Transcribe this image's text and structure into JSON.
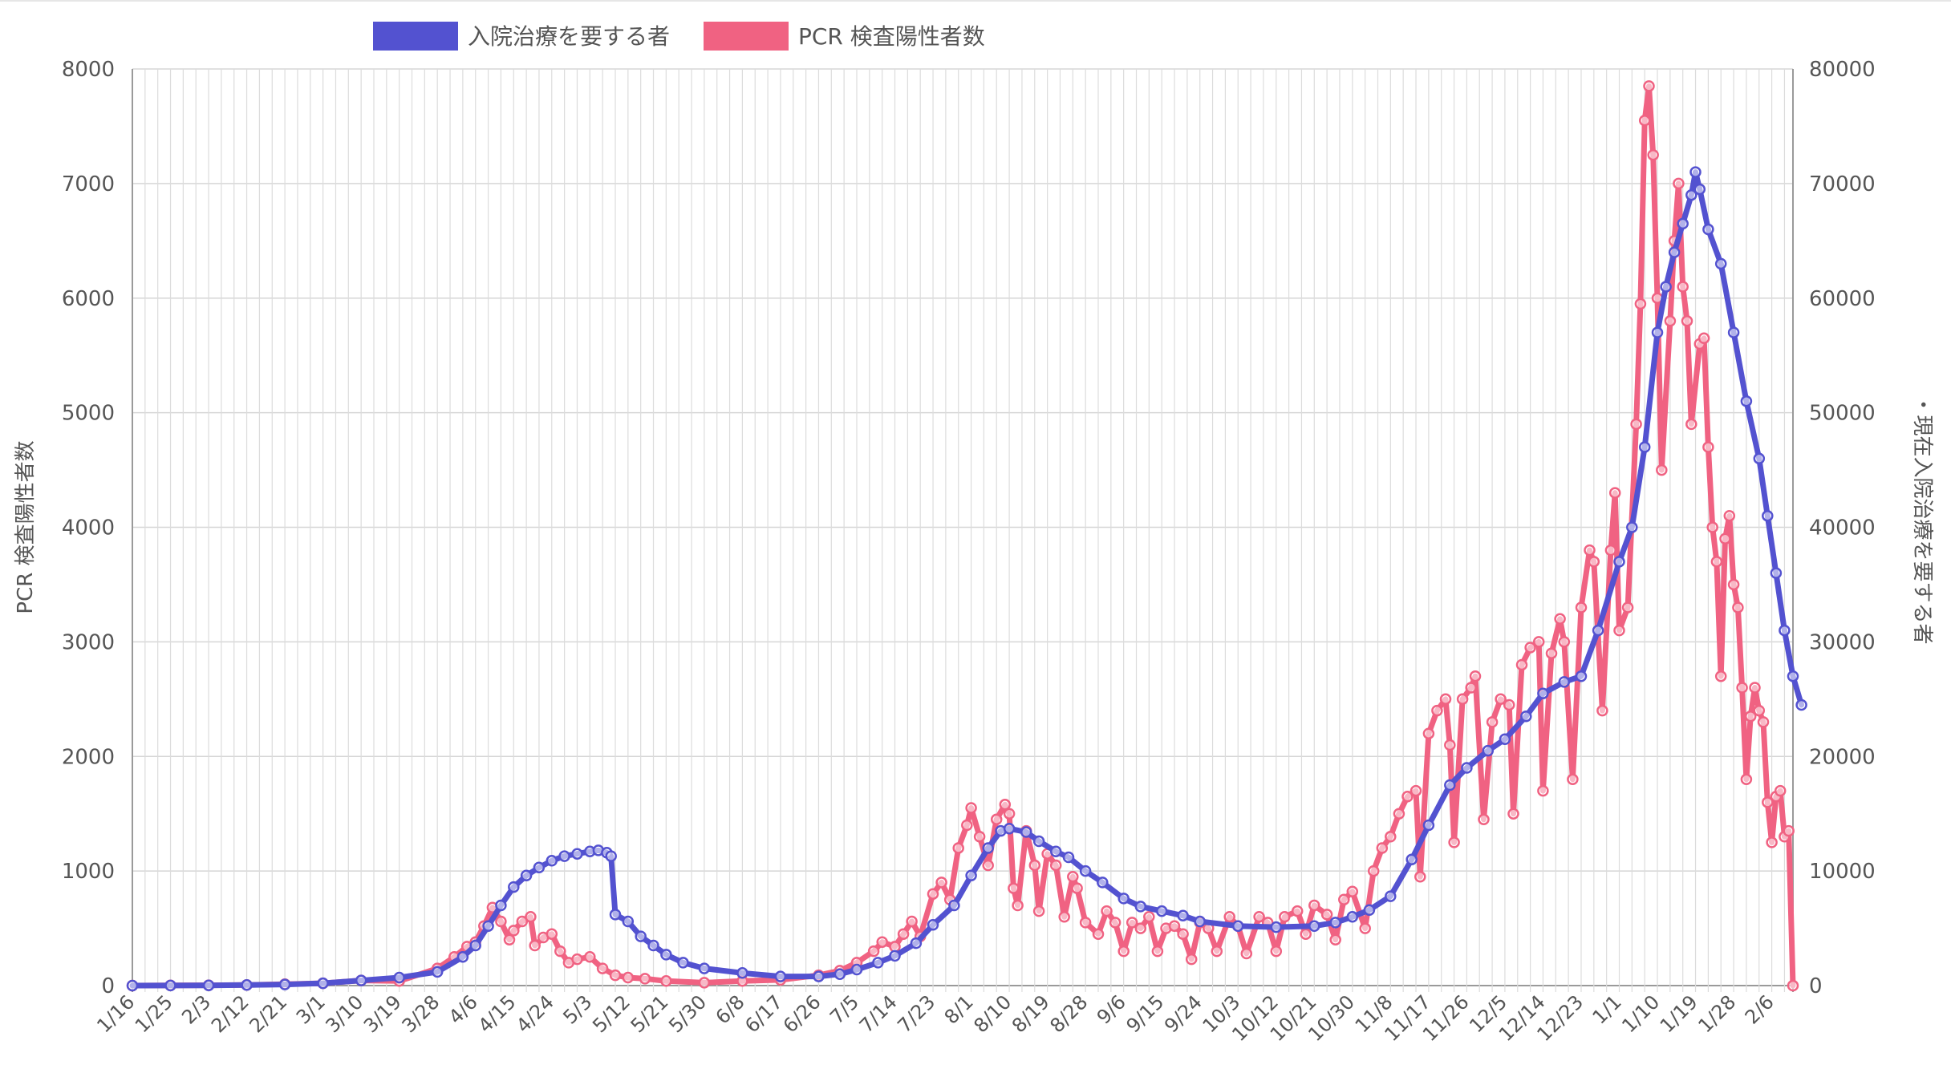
{
  "chart_data": {
    "type": "line",
    "title": "",
    "legend": {
      "placement": "top-center",
      "entries": [
        {
          "name": "入院治療を要する者",
          "color": "#5352d0"
        },
        {
          "name": "PCR 検査陽性者数",
          "color": "#f06282"
        }
      ]
    },
    "y_left": {
      "label": "PCR 検査陽性者数",
      "ylim": [
        0,
        8000
      ],
      "ticks": [
        "0",
        "1000",
        "2000",
        "3000",
        "4000",
        "5000",
        "6000",
        "7000",
        "8000"
      ]
    },
    "y_right": {
      "label": "・現在入院治療を要する者",
      "ylim": [
        0,
        80000
      ],
      "ticks": [
        "0",
        "10000",
        "20000",
        "30000",
        "40000",
        "50000",
        "60000",
        "70000",
        "80000"
      ]
    },
    "x_ticks": [
      "1/16",
      "1/25",
      "2/3",
      "2/12",
      "2/21",
      "3/1",
      "3/10",
      "3/19",
      "3/28",
      "4/6",
      "4/15",
      "4/24",
      "5/3",
      "5/12",
      "5/21",
      "5/30",
      "6/8",
      "6/17",
      "6/26",
      "7/5",
      "7/14",
      "7/23",
      "8/1",
      "8/10",
      "8/19",
      "8/28",
      "9/6",
      "9/15",
      "9/24",
      "10/3",
      "10/12",
      "10/21",
      "10/30",
      "11/8",
      "11/17",
      "11/26",
      "12/5",
      "12/14",
      "12/23",
      "1/1",
      "1/10",
      "1/19",
      "1/28",
      "2/6"
    ],
    "grid": true,
    "series": [
      {
        "name": "PCR 検査陽性者数",
        "axis": "left",
        "color": "#f06282",
        "points": [
          [
            "1/16",
            0
          ],
          [
            "1/25",
            2
          ],
          [
            "2/3",
            3
          ],
          [
            "2/12",
            5
          ],
          [
            "2/21",
            12
          ],
          [
            "3/1",
            20
          ],
          [
            "3/10",
            45
          ],
          [
            "3/19",
            40
          ],
          [
            "3/28",
            150
          ],
          [
            "4/1",
            250
          ],
          [
            "4/4",
            340
          ],
          [
            "4/6",
            380
          ],
          [
            "4/8",
            520
          ],
          [
            "4/10",
            680
          ],
          [
            "4/12",
            560
          ],
          [
            "4/14",
            400
          ],
          [
            "4/15",
            480
          ],
          [
            "4/17",
            560
          ],
          [
            "4/19",
            600
          ],
          [
            "4/20",
            350
          ],
          [
            "4/22",
            420
          ],
          [
            "4/24",
            450
          ],
          [
            "4/26",
            300
          ],
          [
            "4/28",
            200
          ],
          [
            "4/30",
            230
          ],
          [
            "5/3",
            250
          ],
          [
            "5/6",
            150
          ],
          [
            "5/9",
            90
          ],
          [
            "5/12",
            70
          ],
          [
            "5/16",
            60
          ],
          [
            "5/21",
            40
          ],
          [
            "5/30",
            25
          ],
          [
            "6/8",
            40
          ],
          [
            "6/17",
            50
          ],
          [
            "6/26",
            90
          ],
          [
            "7/1",
            130
          ],
          [
            "7/5",
            200
          ],
          [
            "7/9",
            300
          ],
          [
            "7/11",
            380
          ],
          [
            "7/14",
            340
          ],
          [
            "7/16",
            450
          ],
          [
            "7/18",
            560
          ],
          [
            "7/20",
            430
          ],
          [
            "7/23",
            800
          ],
          [
            "7/25",
            900
          ],
          [
            "7/27",
            750
          ],
          [
            "7/29",
            1200
          ],
          [
            "7/31",
            1400
          ],
          [
            "8/1",
            1550
          ],
          [
            "8/3",
            1300
          ],
          [
            "8/5",
            1050
          ],
          [
            "8/7",
            1450
          ],
          [
            "8/9",
            1580
          ],
          [
            "8/10",
            1500
          ],
          [
            "8/11",
            850
          ],
          [
            "8/12",
            700
          ],
          [
            "8/14",
            1350
          ],
          [
            "8/16",
            1050
          ],
          [
            "8/17",
            650
          ],
          [
            "8/19",
            1150
          ],
          [
            "8/21",
            1050
          ],
          [
            "8/23",
            600
          ],
          [
            "8/25",
            950
          ],
          [
            "8/26",
            850
          ],
          [
            "8/28",
            550
          ],
          [
            "8/31",
            450
          ],
          [
            "9/2",
            650
          ],
          [
            "9/4",
            550
          ],
          [
            "9/6",
            300
          ],
          [
            "9/8",
            550
          ],
          [
            "9/10",
            500
          ],
          [
            "9/12",
            600
          ],
          [
            "9/14",
            300
          ],
          [
            "9/16",
            500
          ],
          [
            "9/18",
            520
          ],
          [
            "9/20",
            450
          ],
          [
            "9/22",
            230
          ],
          [
            "9/24",
            550
          ],
          [
            "9/26",
            500
          ],
          [
            "9/28",
            300
          ],
          [
            "10/1",
            600
          ],
          [
            "10/3",
            520
          ],
          [
            "10/5",
            280
          ],
          [
            "10/8",
            600
          ],
          [
            "10/10",
            550
          ],
          [
            "10/12",
            300
          ],
          [
            "10/14",
            600
          ],
          [
            "10/17",
            650
          ],
          [
            "10/19",
            450
          ],
          [
            "10/21",
            700
          ],
          [
            "10/24",
            620
          ],
          [
            "10/26",
            400
          ],
          [
            "10/28",
            750
          ],
          [
            "10/30",
            820
          ],
          [
            "11/2",
            500
          ],
          [
            "11/4",
            1000
          ],
          [
            "11/6",
            1200
          ],
          [
            "11/8",
            1300
          ],
          [
            "11/10",
            1500
          ],
          [
            "11/12",
            1650
          ],
          [
            "11/14",
            1700
          ],
          [
            "11/15",
            950
          ],
          [
            "11/17",
            2200
          ],
          [
            "11/19",
            2400
          ],
          [
            "11/21",
            2500
          ],
          [
            "11/22",
            2100
          ],
          [
            "11/23",
            1250
          ],
          [
            "11/25",
            2500
          ],
          [
            "11/27",
            2600
          ],
          [
            "11/28",
            2700
          ],
          [
            "11/30",
            1450
          ],
          [
            "12/2",
            2300
          ],
          [
            "12/4",
            2500
          ],
          [
            "12/6",
            2450
          ],
          [
            "12/7",
            1500
          ],
          [
            "12/9",
            2800
          ],
          [
            "12/11",
            2950
          ],
          [
            "12/13",
            3000
          ],
          [
            "12/14",
            1700
          ],
          [
            "12/16",
            2900
          ],
          [
            "12/18",
            3200
          ],
          [
            "12/19",
            3000
          ],
          [
            "12/21",
            1800
          ],
          [
            "12/23",
            3300
          ],
          [
            "12/25",
            3800
          ],
          [
            "12/26",
            3700
          ],
          [
            "12/28",
            2400
          ],
          [
            "12/30",
            3800
          ],
          [
            "12/31",
            4300
          ],
          [
            "1/1",
            3100
          ],
          [
            "1/3",
            3300
          ],
          [
            "1/5",
            4900
          ],
          [
            "1/6",
            5950
          ],
          [
            "1/7",
            7550
          ],
          [
            "1/8",
            7850
          ],
          [
            "1/9",
            7250
          ],
          [
            "1/10",
            6000
          ],
          [
            "1/11",
            4500
          ],
          [
            "1/13",
            5800
          ],
          [
            "1/14",
            6500
          ],
          [
            "1/15",
            7000
          ],
          [
            "1/16",
            6100
          ],
          [
            "1/17",
            5800
          ],
          [
            "1/18",
            4900
          ],
          [
            "1/20",
            5600
          ],
          [
            "1/21",
            5650
          ],
          [
            "1/22",
            4700
          ],
          [
            "1/23",
            4000
          ],
          [
            "1/24",
            3700
          ],
          [
            "1/25",
            2700
          ],
          [
            "1/26",
            3900
          ],
          [
            "1/27",
            4100
          ],
          [
            "1/28",
            3500
          ],
          [
            "1/29",
            3300
          ],
          [
            "1/30",
            2600
          ],
          [
            "1/31",
            1800
          ],
          [
            "2/1",
            2350
          ],
          [
            "2/2",
            2600
          ],
          [
            "2/3",
            2400
          ],
          [
            "2/4",
            2300
          ],
          [
            "2/5",
            1600
          ],
          [
            "2/6",
            1250
          ],
          [
            "2/7",
            1650
          ],
          [
            "2/8",
            1700
          ],
          [
            "2/9",
            1300
          ],
          [
            "2/10",
            1350
          ],
          [
            "2/11",
            0
          ]
        ]
      },
      {
        "name": "入院治療を要する者",
        "axis": "right",
        "color": "#5352d0",
        "points": [
          [
            "1/16",
            0
          ],
          [
            "1/25",
            5
          ],
          [
            "2/3",
            20
          ],
          [
            "2/12",
            50
          ],
          [
            "2/21",
            100
          ],
          [
            "3/1",
            200
          ],
          [
            "3/10",
            450
          ],
          [
            "3/19",
            700
          ],
          [
            "3/28",
            1200
          ],
          [
            "4/3",
            2500
          ],
          [
            "4/6",
            3500
          ],
          [
            "4/9",
            5200
          ],
          [
            "4/12",
            7000
          ],
          [
            "4/15",
            8600
          ],
          [
            "4/18",
            9600
          ],
          [
            "4/21",
            10300
          ],
          [
            "4/24",
            10900
          ],
          [
            "4/27",
            11300
          ],
          [
            "4/30",
            11500
          ],
          [
            "5/3",
            11700
          ],
          [
            "5/5",
            11800
          ],
          [
            "5/7",
            11600
          ],
          [
            "5/8",
            11300
          ],
          [
            "5/9",
            6200
          ],
          [
            "5/12",
            5600
          ],
          [
            "5/15",
            4300
          ],
          [
            "5/18",
            3500
          ],
          [
            "5/21",
            2700
          ],
          [
            "5/25",
            2000
          ],
          [
            "5/30",
            1500
          ],
          [
            "6/8",
            1100
          ],
          [
            "6/17",
            800
          ],
          [
            "6/26",
            800
          ],
          [
            "7/1",
            1000
          ],
          [
            "7/5",
            1400
          ],
          [
            "7/10",
            2000
          ],
          [
            "7/14",
            2600
          ],
          [
            "7/19",
            3700
          ],
          [
            "7/23",
            5300
          ],
          [
            "7/28",
            7000
          ],
          [
            "8/1",
            9600
          ],
          [
            "8/5",
            12000
          ],
          [
            "8/8",
            13500
          ],
          [
            "8/10",
            13700
          ],
          [
            "8/14",
            13400
          ],
          [
            "8/17",
            12600
          ],
          [
            "8/21",
            11700
          ],
          [
            "8/24",
            11200
          ],
          [
            "8/28",
            10000
          ],
          [
            "9/1",
            9000
          ],
          [
            "9/6",
            7600
          ],
          [
            "9/10",
            6900
          ],
          [
            "9/15",
            6500
          ],
          [
            "9/20",
            6100
          ],
          [
            "9/24",
            5600
          ],
          [
            "10/3",
            5200
          ],
          [
            "10/12",
            5100
          ],
          [
            "10/21",
            5200
          ],
          [
            "10/26",
            5500
          ],
          [
            "10/30",
            6000
          ],
          [
            "11/3",
            6600
          ],
          [
            "11/8",
            7800
          ],
          [
            "11/13",
            11000
          ],
          [
            "11/17",
            14000
          ],
          [
            "11/22",
            17500
          ],
          [
            "11/26",
            19000
          ],
          [
            "12/1",
            20500
          ],
          [
            "12/5",
            21500
          ],
          [
            "12/10",
            23500
          ],
          [
            "12/14",
            25500
          ],
          [
            "12/19",
            26500
          ],
          [
            "12/23",
            27000
          ],
          [
            "12/27",
            31000
          ],
          [
            "1/1",
            37000
          ],
          [
            "1/4",
            40000
          ],
          [
            "1/7",
            47000
          ],
          [
            "1/10",
            57000
          ],
          [
            "1/12",
            61000
          ],
          [
            "1/14",
            64000
          ],
          [
            "1/16",
            66500
          ],
          [
            "1/18",
            69000
          ],
          [
            "1/19",
            71000
          ],
          [
            "1/20",
            69500
          ],
          [
            "1/22",
            66000
          ],
          [
            "1/25",
            63000
          ],
          [
            "1/28",
            57000
          ],
          [
            "1/31",
            51000
          ],
          [
            "2/3",
            46000
          ],
          [
            "2/5",
            41000
          ],
          [
            "2/7",
            36000
          ],
          [
            "2/9",
            31000
          ],
          [
            "2/11",
            27000
          ],
          [
            "2/13",
            24500
          ]
        ]
      }
    ]
  }
}
